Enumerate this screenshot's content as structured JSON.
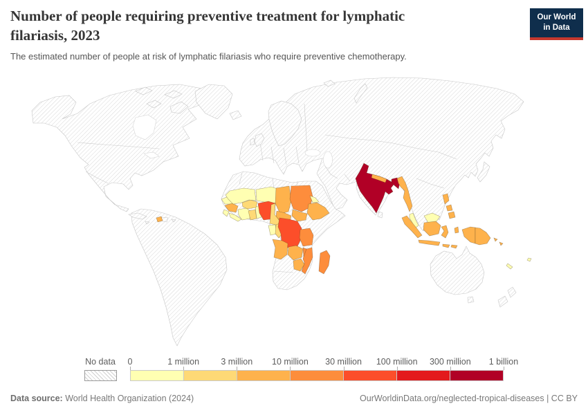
{
  "header": {
    "title": "Number of people requiring preventive treatment for lymphatic filariasis, 2023",
    "subtitle": "The estimated number of people at risk of lymphatic filariasis who require preventive chemotherapy.",
    "logo_line1": "Our World",
    "logo_line2": "in Data",
    "logo_bg": "#0F2E4C",
    "logo_accent": "#C5382E"
  },
  "legend": {
    "no_data_label": "No data",
    "tick_labels": [
      "0",
      "1 million",
      "3 million",
      "10 million",
      "30 million",
      "100 million",
      "300 million",
      "1 billion"
    ]
  },
  "footer": {
    "source_label": "Data source:",
    "source_text": " World Health Organization (2024)",
    "right_text": "OurWorldinData.org/neglected-tropical-diseases | CC BY"
  },
  "chart_data": {
    "type": "choropleth",
    "title": "Number of people requiring preventive treatment for lymphatic filariasis",
    "year": 2023,
    "unit": "people requiring preventive chemotherapy",
    "projection": "world map",
    "no_data": {
      "label": "No data",
      "style": "diagonal hatching",
      "examples": [
        "United States",
        "Canada",
        "Brazil",
        "Europe",
        "Russia",
        "China",
        "Australia",
        "Egypt",
        "Kenya",
        "Sri Lanka"
      ]
    },
    "bins": [
      {
        "range": "0–1 million",
        "color": "#FFFFB2"
      },
      {
        "range": "1–3 million",
        "color": "#FED976"
      },
      {
        "range": "3–10 million",
        "color": "#FEB24C"
      },
      {
        "range": "10–30 million",
        "color": "#FD8D3C"
      },
      {
        "range": "30–100 million",
        "color": "#FC4E2A"
      },
      {
        "range": "100–300 million",
        "color": "#E31A1C"
      },
      {
        "range": "300 million–1 billion",
        "color": "#B10026"
      }
    ],
    "countries": {
      "senegal": {
        "name": "Senegal",
        "bin": "0–1 million",
        "color": "#FFFFB2"
      },
      "sierra_leone": {
        "name": "Sierra Leone",
        "bin": "0–1 million",
        "color": "#FFFFB2"
      },
      "liberia": {
        "name": "Liberia",
        "bin": "0–1 million",
        "color": "#FFFFB2"
      },
      "cote_divoire": {
        "name": "Côte d'Ivoire",
        "bin": "0–1 million",
        "color": "#FFFFB2"
      },
      "togo_benin": {
        "name": "Togo & Benin",
        "bin": "0–1 million",
        "color": "#FFFFB2"
      },
      "mali": {
        "name": "Mali",
        "bin": "0–1 million",
        "color": "#FFFFB2"
      },
      "niger": {
        "name": "Niger",
        "bin": "0–1 million",
        "color": "#FFFFB2"
      },
      "eritrea": {
        "name": "Eritrea",
        "bin": "0–1 million",
        "color": "#FFFFB2"
      },
      "gabon": {
        "name": "Gabon",
        "bin": "0–1 million",
        "color": "#FFFFB2"
      },
      "malaysia": {
        "name": "Malaysia",
        "bin": "0–1 million",
        "color": "#FFFFB2"
      },
      "new_caledonia": {
        "name": "New Caledonia",
        "bin": "0–1 million",
        "color": "#FFFFB2"
      },
      "fiji": {
        "name": "Fiji",
        "bin": "0–1 million",
        "color": "#FFFFB2"
      },
      "ghana": {
        "name": "Ghana",
        "bin": "1–3 million",
        "color": "#FED976"
      },
      "burkina_faso": {
        "name": "Burkina Faso",
        "bin": "1–3 million",
        "color": "#FED976"
      },
      "cameroon": {
        "name": "Cameroon",
        "bin": "1–3 million",
        "color": "#FED976"
      },
      "congo": {
        "name": "Congo",
        "bin": "1–3 million",
        "color": "#FED976"
      },
      "guinea": {
        "name": "Guinea",
        "bin": "3–10 million",
        "color": "#FEB24C"
      },
      "chad": {
        "name": "Chad",
        "bin": "3–10 million",
        "color": "#FEB24C"
      },
      "ethiopia": {
        "name": "Ethiopia",
        "bin": "3–10 million",
        "color": "#FEB24C"
      },
      "south_sudan": {
        "name": "South Sudan",
        "bin": "3–10 million",
        "color": "#FEB24C"
      },
      "central_african_republic": {
        "name": "Central African Republic",
        "bin": "3–10 million",
        "color": "#FEB24C"
      },
      "angola": {
        "name": "Angola",
        "bin": "3–10 million",
        "color": "#FEB24C"
      },
      "zambia": {
        "name": "Zambia",
        "bin": "3–10 million",
        "color": "#FEB24C"
      },
      "zimbabwe": {
        "name": "Zimbabwe",
        "bin": "3–10 million",
        "color": "#FEB24C"
      },
      "haiti": {
        "name": "Haiti",
        "bin": "3–10 million",
        "color": "#FEB24C"
      },
      "nepal": {
        "name": "Nepal",
        "bin": "3–10 million",
        "color": "#FEB24C"
      },
      "myanmar": {
        "name": "Myanmar",
        "bin": "3–10 million",
        "color": "#FEB24C"
      },
      "indonesia": {
        "name": "Indonesia",
        "bin": "3–10 million",
        "color": "#FEB24C"
      },
      "philippines": {
        "name": "Philippines",
        "bin": "3–10 million",
        "color": "#FEB24C"
      },
      "papua_new_guinea": {
        "name": "Papua New Guinea",
        "bin": "3–10 million",
        "color": "#FEB24C"
      },
      "solomon_islands": {
        "name": "Solomon Islands",
        "bin": "3–10 million",
        "color": "#FEB24C"
      },
      "timor_leste": {
        "name": "Timor-Leste",
        "bin": "3–10 million",
        "color": "#FEB24C"
      },
      "sudan": {
        "name": "Sudan",
        "bin": "10–30 million",
        "color": "#FD8D3C"
      },
      "tanzania": {
        "name": "Tanzania",
        "bin": "10–30 million",
        "color": "#FD8D3C"
      },
      "mozambique": {
        "name": "Mozambique",
        "bin": "10–30 million",
        "color": "#FD8D3C"
      },
      "malawi": {
        "name": "Malawi",
        "bin": "10–30 million",
        "color": "#FD8D3C"
      },
      "madagascar": {
        "name": "Madagascar",
        "bin": "10–30 million",
        "color": "#FD8D3C"
      },
      "nigeria": {
        "name": "Nigeria",
        "bin": "30–100 million",
        "color": "#FC4E2A"
      },
      "dr_congo": {
        "name": "Democratic Republic of Congo",
        "bin": "30–100 million",
        "color": "#FC4E2A"
      },
      "india": {
        "name": "India",
        "bin": "300 million–1 billion",
        "color": "#B10026"
      },
      "bangladesh": {
        "name": "Bangladesh",
        "bin": "300 million–1 billion",
        "color": "#B10026"
      }
    }
  }
}
